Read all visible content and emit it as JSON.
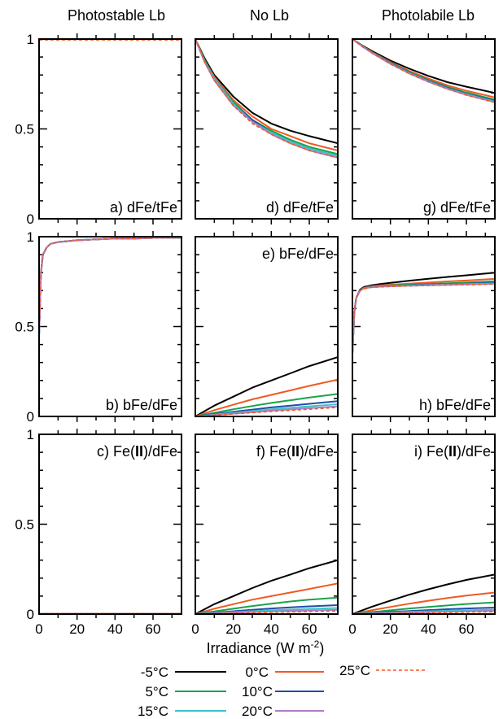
{
  "column_titles": [
    "Photostable Lb",
    "No Lb",
    "Photolabile Lb"
  ],
  "xlabel": "Irradiance (W m-2)",
  "legend": [
    {
      "label": "-5°C",
      "color": "#000000",
      "dashed": false
    },
    {
      "label": "0°C",
      "color": "#ee5a24",
      "dashed": false
    },
    {
      "label": "25°C",
      "color": "#ee5a24",
      "dashed": true
    },
    {
      "label": "5°C",
      "color": "#1aa34a",
      "dashed": false
    },
    {
      "label": "10°C",
      "color": "#1f4ea8",
      "dashed": false
    },
    {
      "label": "15°C",
      "color": "#3cc4c9",
      "dashed": false
    },
    {
      "label": "20°C",
      "color": "#b07cc6",
      "dashed": false
    }
  ],
  "chart_data": [
    {
      "id": "a",
      "type": "line",
      "label": "a) dFe/tFe",
      "xlim": [
        0,
        75
      ],
      "ylim": [
        0,
        1
      ],
      "yticks": [
        "0",
        "0.5",
        "1"
      ],
      "xticks": [
        "0",
        "20",
        "40",
        "60"
      ],
      "x": [
        0,
        75
      ],
      "series": [
        {
          "name": "-5°C",
          "values": [
            1.0,
            1.0
          ]
        },
        {
          "name": "0°C",
          "values": [
            1.0,
            1.0
          ]
        },
        {
          "name": "5°C",
          "values": [
            1.0,
            1.0
          ]
        },
        {
          "name": "10°C",
          "values": [
            1.0,
            1.0
          ]
        },
        {
          "name": "15°C",
          "values": [
            1.0,
            1.0
          ]
        },
        {
          "name": "20°C",
          "values": [
            1.0,
            1.0
          ]
        },
        {
          "name": "25°C",
          "values": [
            0.995,
            0.995
          ]
        }
      ]
    },
    {
      "id": "b",
      "type": "line",
      "label": "b) bFe/dFe",
      "xlim": [
        0,
        75
      ],
      "ylim": [
        0,
        1
      ],
      "yticks": [
        "0",
        "0.5",
        "1"
      ],
      "xticks": [
        "0",
        "20",
        "40",
        "60"
      ],
      "x": [
        0,
        1,
        2,
        4,
        6,
        8,
        10,
        15,
        20,
        30,
        40,
        50,
        60,
        75
      ],
      "series": [
        {
          "name": "-5°C",
          "values": [
            0.45,
            0.8,
            0.9,
            0.94,
            0.96,
            0.965,
            0.97,
            0.975,
            0.98,
            0.985,
            0.99,
            0.99,
            0.993,
            0.995
          ]
        },
        {
          "name": "0°C",
          "values": [
            0.45,
            0.8,
            0.9,
            0.94,
            0.96,
            0.965,
            0.97,
            0.975,
            0.98,
            0.985,
            0.99,
            0.99,
            0.993,
            0.995
          ]
        },
        {
          "name": "5°C",
          "values": [
            0.45,
            0.8,
            0.9,
            0.94,
            0.96,
            0.965,
            0.97,
            0.975,
            0.98,
            0.985,
            0.99,
            0.99,
            0.993,
            0.995
          ]
        },
        {
          "name": "10°C",
          "values": [
            0.45,
            0.8,
            0.9,
            0.94,
            0.96,
            0.965,
            0.97,
            0.975,
            0.98,
            0.985,
            0.99,
            0.99,
            0.993,
            0.995
          ]
        },
        {
          "name": "15°C",
          "values": [
            0.45,
            0.8,
            0.9,
            0.94,
            0.96,
            0.965,
            0.97,
            0.975,
            0.98,
            0.985,
            0.99,
            0.99,
            0.993,
            0.995
          ]
        },
        {
          "name": "20°C",
          "values": [
            0.45,
            0.8,
            0.9,
            0.94,
            0.96,
            0.965,
            0.97,
            0.975,
            0.98,
            0.985,
            0.99,
            0.99,
            0.993,
            0.995
          ]
        },
        {
          "name": "25°C",
          "values": [
            0.45,
            0.8,
            0.9,
            0.94,
            0.96,
            0.965,
            0.97,
            0.975,
            0.98,
            0.985,
            0.99,
            0.99,
            0.993,
            0.995
          ]
        }
      ]
    },
    {
      "id": "c",
      "type": "line",
      "label": "c) Fe(II)/dFe",
      "xlim": [
        0,
        75
      ],
      "ylim": [
        0,
        1
      ],
      "yticks": [
        "0",
        "0.5",
        "1"
      ],
      "xticks": [
        "0",
        "20",
        "40",
        "60"
      ],
      "x": [
        0,
        75
      ],
      "series": [
        {
          "name": "-5°C",
          "values": [
            0.001,
            0.001
          ]
        },
        {
          "name": "0°C",
          "values": [
            0.001,
            0.001
          ]
        },
        {
          "name": "5°C",
          "values": [
            0.001,
            0.001
          ]
        },
        {
          "name": "10°C",
          "values": [
            0.001,
            0.001
          ]
        },
        {
          "name": "15°C",
          "values": [
            0.001,
            0.001
          ]
        },
        {
          "name": "20°C",
          "values": [
            0.001,
            0.001
          ]
        },
        {
          "name": "25°C",
          "values": [
            0.003,
            0.003
          ]
        }
      ]
    },
    {
      "id": "d",
      "type": "line",
      "label": "d) dFe/tFe",
      "xlim": [
        0,
        75
      ],
      "ylim": [
        0,
        1
      ],
      "yticks": [
        "0",
        "0.5",
        "1"
      ],
      "xticks": [
        "0",
        "20",
        "40",
        "60"
      ],
      "x": [
        0,
        5,
        10,
        20,
        30,
        40,
        50,
        60,
        75
      ],
      "series": [
        {
          "name": "-5°C",
          "values": [
            1.0,
            0.89,
            0.8,
            0.68,
            0.59,
            0.53,
            0.49,
            0.46,
            0.42
          ]
        },
        {
          "name": "0°C",
          "values": [
            1.0,
            0.88,
            0.79,
            0.66,
            0.57,
            0.5,
            0.46,
            0.42,
            0.38
          ]
        },
        {
          "name": "5°C",
          "values": [
            1.0,
            0.88,
            0.78,
            0.65,
            0.55,
            0.49,
            0.44,
            0.4,
            0.36
          ]
        },
        {
          "name": "10°C",
          "values": [
            1.0,
            0.87,
            0.78,
            0.64,
            0.55,
            0.48,
            0.43,
            0.39,
            0.35
          ]
        },
        {
          "name": "15°C",
          "values": [
            1.0,
            0.87,
            0.78,
            0.64,
            0.54,
            0.48,
            0.43,
            0.39,
            0.35
          ]
        },
        {
          "name": "20°C",
          "values": [
            1.0,
            0.87,
            0.77,
            0.63,
            0.54,
            0.47,
            0.42,
            0.38,
            0.34
          ]
        },
        {
          "name": "25°C",
          "values": [
            1.0,
            0.87,
            0.77,
            0.63,
            0.53,
            0.47,
            0.42,
            0.38,
            0.34
          ]
        }
      ]
    },
    {
      "id": "e",
      "type": "line",
      "label": "e) bFe/dFe",
      "xlim": [
        0,
        75
      ],
      "ylim": [
        0,
        1
      ],
      "yticks": [
        "0",
        "0.5",
        "1"
      ],
      "xticks": [
        "0",
        "20",
        "40",
        "60"
      ],
      "x": [
        0,
        10,
        20,
        30,
        40,
        50,
        60,
        75
      ],
      "series": [
        {
          "name": "-5°C",
          "values": [
            0.0,
            0.06,
            0.11,
            0.16,
            0.2,
            0.24,
            0.28,
            0.33
          ]
        },
        {
          "name": "0°C",
          "values": [
            0.0,
            0.035,
            0.065,
            0.095,
            0.12,
            0.145,
            0.17,
            0.205
          ]
        },
        {
          "name": "5°C",
          "values": [
            0.0,
            0.02,
            0.04,
            0.058,
            0.075,
            0.09,
            0.105,
            0.125
          ]
        },
        {
          "name": "10°C",
          "values": [
            0.0,
            0.013,
            0.026,
            0.038,
            0.05,
            0.06,
            0.07,
            0.085
          ]
        },
        {
          "name": "15°C",
          "values": [
            0.0,
            0.01,
            0.02,
            0.03,
            0.04,
            0.048,
            0.056,
            0.068
          ]
        },
        {
          "name": "20°C",
          "values": [
            0.0,
            0.008,
            0.016,
            0.024,
            0.032,
            0.039,
            0.046,
            0.056
          ]
        },
        {
          "name": "25°C",
          "values": [
            0.0,
            0.007,
            0.014,
            0.021,
            0.028,
            0.034,
            0.04,
            0.05
          ]
        }
      ]
    },
    {
      "id": "f",
      "type": "line",
      "label": "f) Fe(II)/dFe",
      "xlim": [
        0,
        75
      ],
      "ylim": [
        0,
        1
      ],
      "yticks": [
        "0",
        "0.5",
        "1"
      ],
      "xticks": [
        "0",
        "20",
        "40",
        "60"
      ],
      "x": [
        0,
        10,
        20,
        30,
        40,
        50,
        60,
        75
      ],
      "series": [
        {
          "name": "-5°C",
          "values": [
            0.0,
            0.055,
            0.1,
            0.145,
            0.185,
            0.22,
            0.255,
            0.3
          ]
        },
        {
          "name": "0°C",
          "values": [
            0.0,
            0.03,
            0.055,
            0.08,
            0.1,
            0.12,
            0.14,
            0.17
          ]
        },
        {
          "name": "5°C",
          "values": [
            0.0,
            0.015,
            0.03,
            0.045,
            0.058,
            0.07,
            0.08,
            0.092
          ]
        },
        {
          "name": "10°C",
          "values": [
            0.0,
            0.008,
            0.016,
            0.024,
            0.031,
            0.037,
            0.043,
            0.05
          ]
        },
        {
          "name": "15°C",
          "values": [
            0.0,
            0.006,
            0.011,
            0.016,
            0.021,
            0.025,
            0.029,
            0.034
          ]
        },
        {
          "name": "20°C",
          "values": [
            0.0,
            0.004,
            0.008,
            0.011,
            0.014,
            0.017,
            0.02,
            0.024
          ]
        },
        {
          "name": "25°C",
          "values": [
            0.0,
            0.003,
            0.006,
            0.008,
            0.01,
            0.012,
            0.014,
            0.017
          ]
        }
      ]
    },
    {
      "id": "g",
      "type": "line",
      "label": "g) dFe/tFe",
      "xlim": [
        0,
        75
      ],
      "ylim": [
        0,
        1
      ],
      "yticks": [
        "0",
        "0.5",
        "1"
      ],
      "xticks": [
        "0",
        "20",
        "40",
        "60"
      ],
      "x": [
        0,
        5,
        10,
        20,
        30,
        40,
        50,
        60,
        75
      ],
      "series": [
        {
          "name": "-5°C",
          "values": [
            1.0,
            0.965,
            0.935,
            0.88,
            0.835,
            0.795,
            0.76,
            0.735,
            0.7
          ]
        },
        {
          "name": "0°C",
          "values": [
            1.0,
            0.963,
            0.93,
            0.872,
            0.822,
            0.78,
            0.742,
            0.712,
            0.675
          ]
        },
        {
          "name": "5°C",
          "values": [
            1.0,
            0.962,
            0.928,
            0.868,
            0.816,
            0.772,
            0.733,
            0.702,
            0.663
          ]
        },
        {
          "name": "10°C",
          "values": [
            1.0,
            0.961,
            0.927,
            0.865,
            0.812,
            0.768,
            0.728,
            0.696,
            0.656
          ]
        },
        {
          "name": "15°C",
          "values": [
            1.0,
            0.961,
            0.926,
            0.863,
            0.81,
            0.765,
            0.725,
            0.693,
            0.652
          ]
        },
        {
          "name": "20°C",
          "values": [
            1.0,
            0.96,
            0.925,
            0.862,
            0.808,
            0.763,
            0.723,
            0.69,
            0.649
          ]
        },
        {
          "name": "25°C",
          "values": [
            1.0,
            0.96,
            0.925,
            0.861,
            0.807,
            0.762,
            0.722,
            0.688,
            0.647
          ]
        }
      ]
    },
    {
      "id": "h",
      "type": "line",
      "label": "h) bFe/dFe",
      "xlim": [
        0,
        75
      ],
      "ylim": [
        0,
        1
      ],
      "yticks": [
        "0",
        "0.5",
        "1"
      ],
      "xticks": [
        "0",
        "20",
        "40",
        "60"
      ],
      "x": [
        0,
        1,
        2,
        4,
        6,
        8,
        10,
        15,
        20,
        30,
        40,
        50,
        60,
        75
      ],
      "series": [
        {
          "name": "-5°C",
          "values": [
            0.35,
            0.58,
            0.66,
            0.705,
            0.72,
            0.725,
            0.73,
            0.737,
            0.743,
            0.755,
            0.766,
            0.776,
            0.785,
            0.8
          ]
        },
        {
          "name": "0°C",
          "values": [
            0.35,
            0.58,
            0.66,
            0.7,
            0.715,
            0.72,
            0.725,
            0.73,
            0.733,
            0.739,
            0.745,
            0.751,
            0.756,
            0.765
          ]
        },
        {
          "name": "5°C",
          "values": [
            0.35,
            0.58,
            0.66,
            0.7,
            0.713,
            0.718,
            0.722,
            0.726,
            0.729,
            0.733,
            0.737,
            0.741,
            0.745,
            0.752
          ]
        },
        {
          "name": "10°C",
          "values": [
            0.35,
            0.58,
            0.66,
            0.7,
            0.712,
            0.717,
            0.72,
            0.724,
            0.726,
            0.73,
            0.733,
            0.736,
            0.739,
            0.744
          ]
        },
        {
          "name": "15°C",
          "values": [
            0.35,
            0.58,
            0.66,
            0.7,
            0.712,
            0.716,
            0.719,
            0.723,
            0.725,
            0.728,
            0.731,
            0.734,
            0.736,
            0.74
          ]
        },
        {
          "name": "20°C",
          "values": [
            0.35,
            0.58,
            0.66,
            0.7,
            0.711,
            0.716,
            0.719,
            0.722,
            0.724,
            0.727,
            0.73,
            0.732,
            0.734,
            0.738
          ]
        },
        {
          "name": "25°C",
          "values": [
            0.35,
            0.58,
            0.66,
            0.7,
            0.711,
            0.715,
            0.718,
            0.721,
            0.723,
            0.726,
            0.729,
            0.731,
            0.733,
            0.736
          ]
        }
      ]
    },
    {
      "id": "i",
      "type": "line",
      "label": "i) Fe(II)/dFe",
      "xlim": [
        0,
        75
      ],
      "ylim": [
        0,
        1
      ],
      "yticks": [
        "0",
        "0.5",
        "1"
      ],
      "xticks": [
        "0",
        "20",
        "40",
        "60"
      ],
      "x": [
        0,
        10,
        20,
        30,
        40,
        50,
        60,
        75
      ],
      "series": [
        {
          "name": "-5°C",
          "values": [
            0.0,
            0.04,
            0.075,
            0.108,
            0.138,
            0.165,
            0.19,
            0.22
          ]
        },
        {
          "name": "0°C",
          "values": [
            0.0,
            0.021,
            0.04,
            0.058,
            0.074,
            0.089,
            0.103,
            0.12
          ]
        },
        {
          "name": "5°C",
          "values": [
            0.0,
            0.011,
            0.021,
            0.031,
            0.04,
            0.048,
            0.056,
            0.065
          ]
        },
        {
          "name": "10°C",
          "values": [
            0.0,
            0.006,
            0.012,
            0.017,
            0.022,
            0.027,
            0.031,
            0.036
          ]
        },
        {
          "name": "15°C",
          "values": [
            0.0,
            0.004,
            0.008,
            0.012,
            0.015,
            0.018,
            0.021,
            0.025
          ]
        },
        {
          "name": "20°C",
          "values": [
            0.0,
            0.003,
            0.006,
            0.008,
            0.011,
            0.013,
            0.015,
            0.018
          ]
        },
        {
          "name": "25°C",
          "values": [
            0.0,
            0.002,
            0.004,
            0.006,
            0.008,
            0.009,
            0.011,
            0.013
          ]
        }
      ]
    }
  ]
}
